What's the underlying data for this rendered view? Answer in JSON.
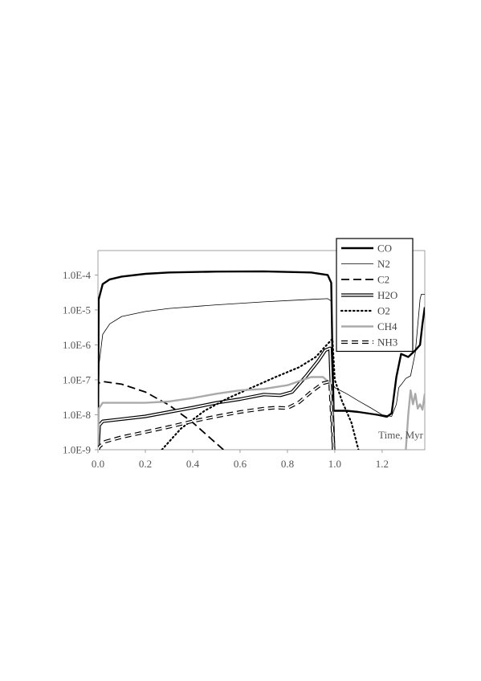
{
  "chart_data": {
    "type": "line",
    "xlabel": "Time, Myr",
    "ylabel": "",
    "y_scale": "log",
    "xlim": [
      0,
      1.38
    ],
    "ylim": [
      1e-09,
      0.0005
    ],
    "x_ticks": [
      "0.0",
      "0.2",
      "0.4",
      "0.6",
      "0.8",
      "1.0",
      "1.2"
    ],
    "x_tick_values": [
      0,
      0.2,
      0.4,
      0.6,
      0.8,
      1.0,
      1.2
    ],
    "y_ticks": [
      "1.0E-9",
      "1.0E-8",
      "1.0E-7",
      "1.0E-6",
      "1.0E-5",
      "1.0E-4"
    ],
    "y_tick_values": [
      1e-09,
      1e-08,
      1e-07,
      1e-06,
      1e-05,
      0.0001
    ],
    "grid": false,
    "legend_position": "top-right",
    "series": [
      {
        "name": "CO",
        "color": "#000000",
        "style": "thick",
        "points": [
          [
            0,
            1e-09
          ],
          [
            0.003,
            2e-05
          ],
          [
            0.02,
            5.5e-05
          ],
          [
            0.05,
            7.5e-05
          ],
          [
            0.1,
            9e-05
          ],
          [
            0.2,
            0.000108
          ],
          [
            0.3,
            0.000118
          ],
          [
            0.5,
            0.000125
          ],
          [
            0.7,
            0.000127
          ],
          [
            0.9,
            0.000118
          ],
          [
            0.97,
            0.0001
          ],
          [
            0.985,
            6e-05
          ],
          [
            0.99,
            5e-07
          ],
          [
            0.995,
            1.3e-08
          ],
          [
            1.05,
            1.3e-08
          ],
          [
            1.1,
            1.2e-08
          ],
          [
            1.18,
            1e-08
          ],
          [
            1.22,
            8.8e-09
          ],
          [
            1.24,
            1.1e-08
          ],
          [
            1.26,
            1.2e-07
          ],
          [
            1.28,
            5.5e-07
          ],
          [
            1.31,
            4.5e-07
          ],
          [
            1.34,
            7e-07
          ],
          [
            1.36,
            1e-06
          ],
          [
            1.37,
            4e-06
          ],
          [
            1.38,
            1.2e-05
          ]
        ]
      },
      {
        "name": "N2",
        "color": "#000000",
        "style": "thin",
        "points": [
          [
            0,
            1e-09
          ],
          [
            0.005,
            3e-07
          ],
          [
            0.02,
            2e-06
          ],
          [
            0.05,
            4e-06
          ],
          [
            0.1,
            6.5e-06
          ],
          [
            0.2,
            9e-06
          ],
          [
            0.3,
            1.1e-05
          ],
          [
            0.5,
            1.4e-05
          ],
          [
            0.7,
            1.7e-05
          ],
          [
            0.9,
            2e-05
          ],
          [
            0.97,
            2.1e-05
          ],
          [
            0.985,
            1.8e-05
          ],
          [
            0.99,
            8e-08
          ],
          [
            1.0,
            6e-08
          ],
          [
            1.05,
            4e-08
          ],
          [
            1.1,
            2.5e-08
          ],
          [
            1.15,
            1.6e-08
          ],
          [
            1.2,
            1e-08
          ],
          [
            1.24,
            9e-09
          ],
          [
            1.26,
            2e-08
          ],
          [
            1.27,
            6e-08
          ],
          [
            1.285,
            8e-08
          ],
          [
            1.3,
            1.1e-07
          ],
          [
            1.32,
            1.3e-07
          ],
          [
            1.34,
            6e-07
          ],
          [
            1.36,
            2e-05
          ],
          [
            1.365,
            2.8e-05
          ],
          [
            1.38,
            2.8e-05
          ]
        ]
      },
      {
        "name": "C2",
        "color": "#000000",
        "style": "dash",
        "points": [
          [
            0,
            1e-09
          ],
          [
            0.002,
            8e-08
          ],
          [
            0.02,
            9e-08
          ],
          [
            0.1,
            7.5e-08
          ],
          [
            0.2,
            4.5e-08
          ],
          [
            0.3,
            1.9e-08
          ],
          [
            0.4,
            6e-09
          ],
          [
            0.45,
            3e-09
          ],
          [
            0.5,
            1.5e-09
          ],
          [
            0.53,
            1e-09
          ]
        ]
      },
      {
        "name": "H2O",
        "color": "#000000",
        "style": "double",
        "points": [
          [
            0,
            1e-09
          ],
          [
            0.005,
            5e-09
          ],
          [
            0.02,
            6.5e-09
          ],
          [
            0.1,
            7.5e-09
          ],
          [
            0.2,
            9e-09
          ],
          [
            0.3,
            1.2e-08
          ],
          [
            0.4,
            1.6e-08
          ],
          [
            0.5,
            2.2e-08
          ],
          [
            0.6,
            2.8e-08
          ],
          [
            0.7,
            3.8e-08
          ],
          [
            0.77,
            3.6e-08
          ],
          [
            0.82,
            4.5e-08
          ],
          [
            0.88,
            1.3e-07
          ],
          [
            0.93,
            3.5e-07
          ],
          [
            0.96,
            7e-07
          ],
          [
            0.98,
            8e-07
          ],
          [
            0.99,
            1e-08
          ],
          [
            0.995,
            1e-09
          ]
        ]
      },
      {
        "name": "O2",
        "color": "#000000",
        "style": "dot",
        "points": [
          [
            0.27,
            1e-09
          ],
          [
            0.35,
            4e-09
          ],
          [
            0.45,
            1.3e-08
          ],
          [
            0.55,
            3e-08
          ],
          [
            0.65,
            6e-08
          ],
          [
            0.75,
            1.2e-07
          ],
          [
            0.85,
            2.3e-07
          ],
          [
            0.92,
            4.5e-07
          ],
          [
            0.96,
            9e-07
          ],
          [
            0.99,
            1.5e-06
          ],
          [
            1.0,
            1e-07
          ],
          [
            1.03,
            2.5e-08
          ],
          [
            1.07,
            6e-09
          ],
          [
            1.1,
            1e-09
          ]
        ]
      },
      {
        "name": "CH4",
        "color": "#aaaaaa",
        "style": "thick",
        "points": [
          [
            0,
            1e-09
          ],
          [
            0.003,
            1.5e-08
          ],
          [
            0.02,
            2.2e-08
          ],
          [
            0.1,
            2.2e-08
          ],
          [
            0.2,
            2.2e-08
          ],
          [
            0.3,
            2.4e-08
          ],
          [
            0.4,
            3e-08
          ],
          [
            0.5,
            4e-08
          ],
          [
            0.6,
            5e-08
          ],
          [
            0.7,
            5.5e-08
          ],
          [
            0.8,
            7e-08
          ],
          [
            0.9,
            1.2e-07
          ],
          [
            0.95,
            1.2e-07
          ],
          [
            0.98,
            8e-08
          ],
          [
            0.99,
            2e-08
          ],
          [
            0.995,
            1e-09
          ]
        ]
      },
      {
        "name": "CH4",
        "color": "#aaaaaa",
        "style": "thick",
        "points": [
          [
            1.3,
            1e-09
          ],
          [
            1.31,
            1e-08
          ],
          [
            1.32,
            5e-08
          ],
          [
            1.33,
            2e-08
          ],
          [
            1.34,
            4e-08
          ],
          [
            1.35,
            1.5e-08
          ],
          [
            1.36,
            2e-08
          ],
          [
            1.37,
            1.4e-08
          ],
          [
            1.38,
            4e-08
          ]
        ]
      },
      {
        "name": "NH3",
        "color": "#000000",
        "style": "doubledash",
        "points": [
          [
            0,
            1e-09
          ],
          [
            0.005,
            1.2e-09
          ],
          [
            0.03,
            1.7e-09
          ],
          [
            0.1,
            2.3e-09
          ],
          [
            0.2,
            3.2e-09
          ],
          [
            0.3,
            4.5e-09
          ],
          [
            0.4,
            6.5e-09
          ],
          [
            0.5,
            9e-09
          ],
          [
            0.6,
            1.2e-08
          ],
          [
            0.7,
            1.5e-08
          ],
          [
            0.75,
            1.6e-08
          ],
          [
            0.8,
            1.55e-08
          ],
          [
            0.85,
            2.3e-08
          ],
          [
            0.9,
            4.5e-08
          ],
          [
            0.95,
            8e-08
          ],
          [
            0.98,
            9e-08
          ],
          [
            0.99,
            4e-09
          ],
          [
            0.995,
            1e-09
          ]
        ]
      }
    ]
  },
  "legend": {
    "items": [
      {
        "label": "CO",
        "style": "thick",
        "color": "#000000"
      },
      {
        "label": "N2",
        "style": "thin",
        "color": "#000000"
      },
      {
        "label": "C2",
        "style": "dash",
        "color": "#000000"
      },
      {
        "label": "H2O",
        "style": "double",
        "color": "#000000"
      },
      {
        "label": "O2",
        "style": "dot",
        "color": "#000000"
      },
      {
        "label": "CH4",
        "style": "thick",
        "color": "#aaaaaa"
      },
      {
        "label": "NH3",
        "style": "doubledash",
        "color": "#000000"
      }
    ]
  }
}
